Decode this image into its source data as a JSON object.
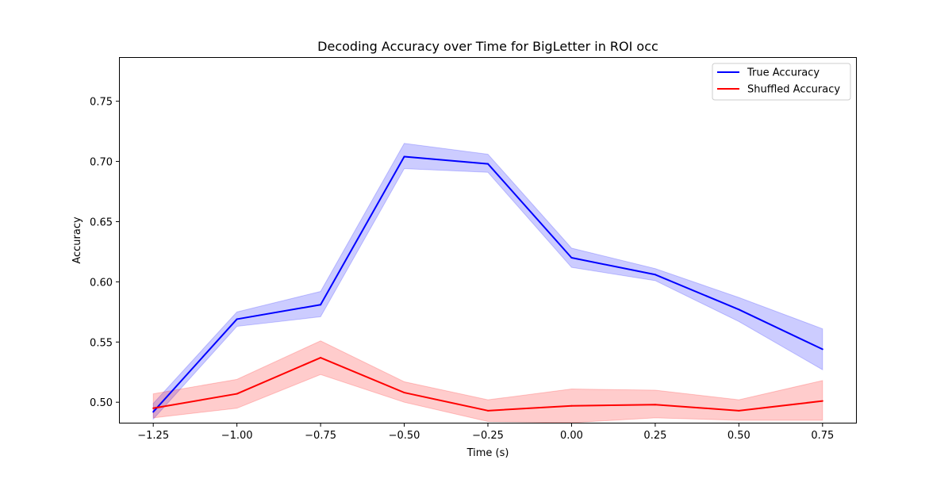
{
  "chart_data": {
    "type": "line",
    "title": "Decoding Accuracy over Time for BigLetter in ROI occ",
    "xlabel": "Time (s)",
    "ylabel": "Accuracy",
    "xlim": [
      -1.35,
      0.85
    ],
    "ylim": [
      0.483,
      0.786
    ],
    "xticks": [
      -1.25,
      -1.0,
      -0.75,
      -0.5,
      -0.25,
      0.0,
      0.25,
      0.5,
      0.75
    ],
    "xtick_labels": [
      "−1.25",
      "−1.00",
      "−0.75",
      "−0.50",
      "−0.25",
      "0.00",
      "0.25",
      "0.50",
      "0.75"
    ],
    "yticks": [
      0.5,
      0.55,
      0.6,
      0.65,
      0.7,
      0.75
    ],
    "ytick_labels": [
      "0.50",
      "0.55",
      "0.60",
      "0.65",
      "0.70",
      "0.75"
    ],
    "grid": false,
    "legend_position": "top-right",
    "x": [
      -1.25,
      -1.0,
      -0.75,
      -0.5,
      -0.25,
      0.0,
      0.25,
      0.5,
      0.75
    ],
    "series": [
      {
        "name": "True Accuracy",
        "color": "#0000ff",
        "band_color": "#0000ff",
        "values": [
          0.492,
          0.569,
          0.581,
          0.704,
          0.698,
          0.62,
          0.606,
          0.577,
          0.544
        ],
        "lower": [
          0.486,
          0.563,
          0.571,
          0.694,
          0.691,
          0.612,
          0.601,
          0.567,
          0.527
        ],
        "upper": [
          0.499,
          0.575,
          0.592,
          0.715,
          0.706,
          0.628,
          0.611,
          0.587,
          0.561
        ]
      },
      {
        "name": "Shuffled Accuracy",
        "color": "#ff0000",
        "band_color": "#ff0000",
        "values": [
          0.495,
          0.507,
          0.537,
          0.508,
          0.493,
          0.497,
          0.498,
          0.493,
          0.501
        ],
        "lower": [
          0.487,
          0.495,
          0.523,
          0.5,
          0.484,
          0.483,
          0.487,
          0.485,
          0.485
        ],
        "upper": [
          0.507,
          0.519,
          0.551,
          0.517,
          0.502,
          0.511,
          0.51,
          0.502,
          0.518
        ]
      }
    ]
  }
}
